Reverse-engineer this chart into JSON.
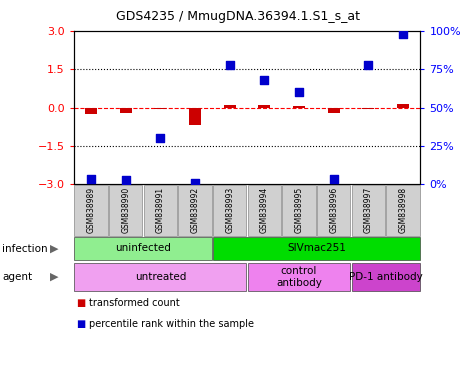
{
  "title": "GDS4235 / MmugDNA.36394.1.S1_s_at",
  "samples": [
    "GSM838989",
    "GSM838990",
    "GSM838991",
    "GSM838992",
    "GSM838993",
    "GSM838994",
    "GSM838995",
    "GSM838996",
    "GSM838997",
    "GSM838998"
  ],
  "transformed_count": [
    -0.25,
    -0.2,
    -0.05,
    -0.7,
    0.1,
    0.1,
    0.05,
    -0.2,
    -0.05,
    0.15
  ],
  "percentile_rank": [
    3.5,
    2.5,
    30.0,
    1.0,
    78.0,
    68.0,
    60.0,
    3.5,
    78.0,
    98.0
  ],
  "ylim_left": [
    -3,
    3
  ],
  "ylim_right": [
    0,
    100
  ],
  "yticks_left": [
    -3,
    -1.5,
    0,
    1.5,
    3
  ],
  "yticks_right": [
    0,
    25,
    50,
    75,
    100
  ],
  "yticklabels_right": [
    "0%",
    "25%",
    "50%",
    "75%",
    "100%"
  ],
  "bar_color": "#cc0000",
  "dot_color": "#0000cc",
  "infection_groups": [
    {
      "label": "uninfected",
      "start": 0,
      "end": 4,
      "color": "#90ee90"
    },
    {
      "label": "SIVmac251",
      "start": 4,
      "end": 10,
      "color": "#00dd00"
    }
  ],
  "agent_groups": [
    {
      "label": "untreated",
      "start": 0,
      "end": 5,
      "color": "#f0a0f0"
    },
    {
      "label": "control\nantibody",
      "start": 5,
      "end": 8,
      "color": "#ee82ee"
    },
    {
      "label": "PD-1 antibody",
      "start": 8,
      "end": 10,
      "color": "#cc44cc"
    }
  ],
  "legend_items": [
    {
      "label": "transformed count",
      "color": "#cc0000"
    },
    {
      "label": "percentile rank within the sample",
      "color": "#0000cc"
    }
  ],
  "bar_width": 0.35,
  "dot_size": 40
}
